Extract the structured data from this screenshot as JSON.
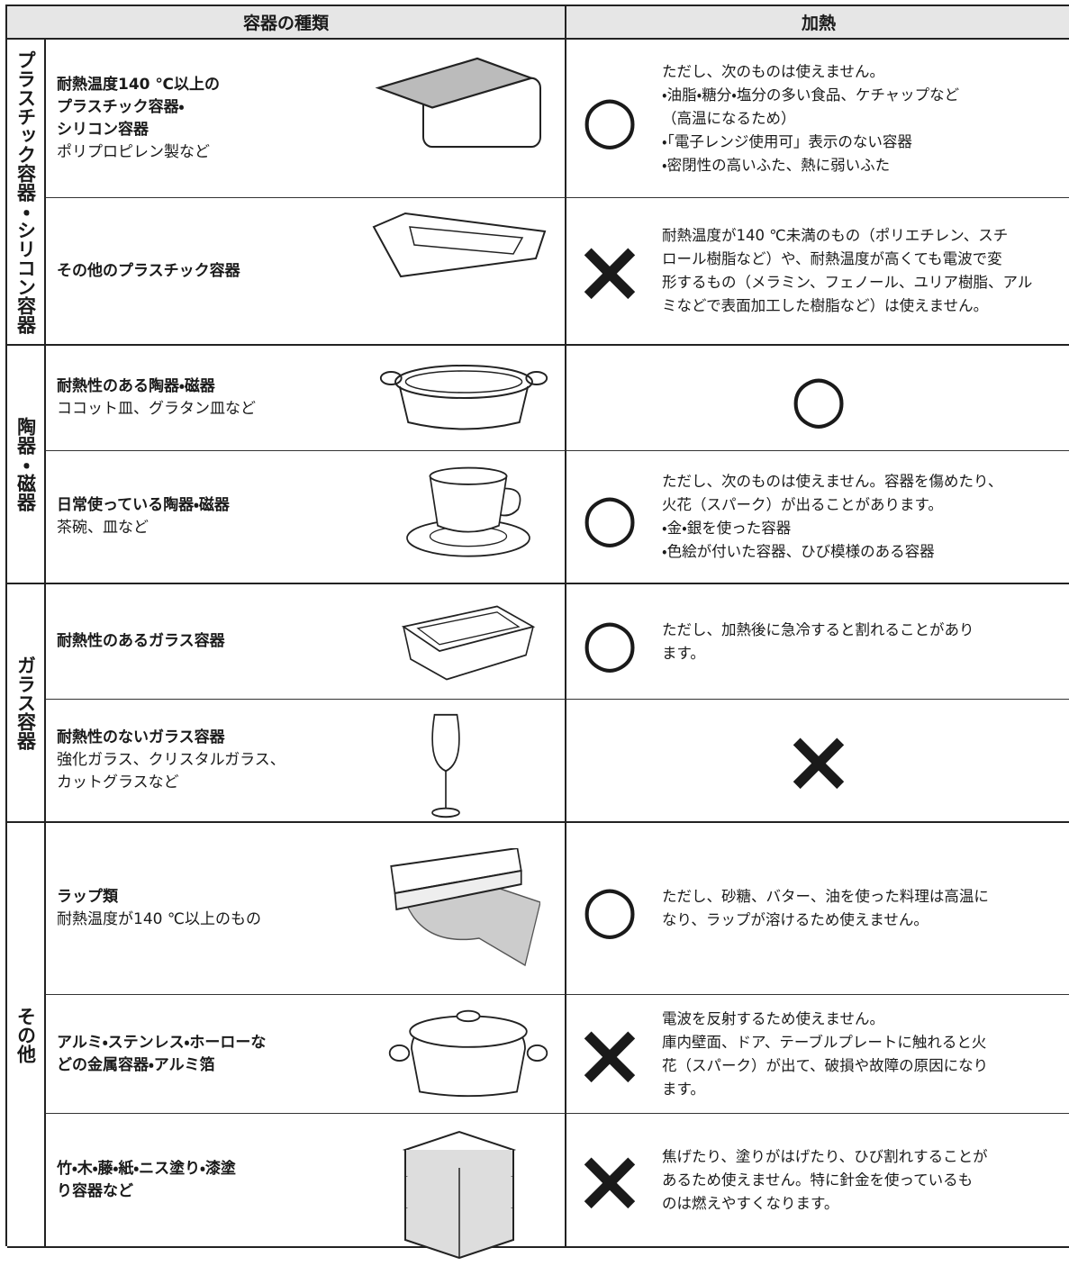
{
  "header": {
    "left": "容器の種類",
    "right": "加熱"
  },
  "groups": [
    {
      "label": "プラスチック容器・シリコン容器",
      "rows": [
        {
          "name": [
            "耐熱温度140 ℃以上の",
            "プラスチック容器・",
            "シリコン容器"
          ],
          "sub": [
            "ポリプロピレン製など"
          ],
          "mark": "○",
          "note": [
            "ただし、次のものは使えません。",
            "・油脂・糖分・塩分の多い食品、ケチャップなど",
            "（高温になるため）",
            "・「電子レンジ使用可」表示のない容器",
            "・密閉性の高いふた、熱に弱いふた"
          ]
        },
        {
          "name": [
            "その他のプラスチック容器"
          ],
          "sub": [],
          "mark": "×",
          "note": [
            "耐熱温度が140 ℃未満のもの（ポリエチレン、スチ",
            "ロール樹脂など）や、耐熱温度が高くても電波で変",
            "形するもの（メラミン、フェノール、ユリア樹脂、アル",
            "ミなどで表面加工した樹脂など）は使えません。"
          ]
        }
      ]
    },
    {
      "label": "陶器・磁器",
      "rows": [
        {
          "name": [
            "耐熱性のある陶器・磁器"
          ],
          "sub": [
            "ココット皿、グラタン皿など"
          ],
          "mark": "○",
          "note": []
        },
        {
          "name": [
            "日常使っている陶器・磁器"
          ],
          "sub": [
            "茶碗、皿など"
          ],
          "mark": "○",
          "note": [
            "ただし、次のものは使えません。容器を傷めたり、",
            "火花（スパーク）が出ることがあります。",
            "・金・銀を使った容器",
            "・色絵が付いた容器、ひび模様のある容器"
          ]
        }
      ]
    },
    {
      "label": "ガラス容器",
      "rows": [
        {
          "name": [
            "耐熱性のあるガラス容器"
          ],
          "sub": [],
          "mark": "○",
          "note": [
            "ただし、加熱後に急冷すると割れることがあり",
            "ます。"
          ]
        },
        {
          "name": [
            "耐熱性のないガラス容器"
          ],
          "sub": [
            "強化ガラス、クリスタルガラス、",
            "カットグラスなど"
          ],
          "mark": "×",
          "note": []
        }
      ]
    },
    {
      "label": "その他",
      "rows": [
        {
          "name": [
            "ラップ類"
          ],
          "sub": [
            "耐熱温度が140 ℃以上のもの"
          ],
          "mark": "○",
          "note": [
            "ただし、砂糖、バター、油を使った料理は高温に",
            "なり、ラップが溶けるため使えません。"
          ]
        },
        {
          "name": [
            "アルミ・ステンレス・ホーローな",
            "どの金属容器・アルミ箔"
          ],
          "sub": [],
          "mark": "×",
          "note": [
            "電波を反射するため使えません。",
            "庫内壁面、ドア、テーブルプレートに触れると火",
            "花（スパーク）が出て、破損や故障の原因になり",
            "ます。"
          ]
        },
        {
          "name": [
            "竹・木・藤・紙・ニス塗り・漆塗",
            "り容器など"
          ],
          "sub": [],
          "mark": "×",
          "note": [
            "焦げたり、塗りがはげたり、ひび割れすることが",
            "あるため使えません。特に針金を使っているも",
            "のは燃えやすくなります。"
          ]
        }
      ]
    }
  ]
}
